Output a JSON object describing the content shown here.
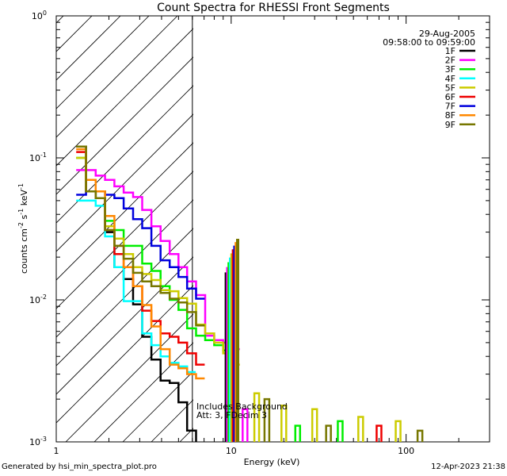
{
  "chart_data": {
    "type": "line",
    "title": "Count Spectra for RHESSI Front Segments",
    "xlabel": "Energy (keV)",
    "ylabel_parts": [
      "counts cm",
      "-2",
      " s",
      "-1",
      " keV",
      "-1"
    ],
    "xscale": "log",
    "yscale": "log",
    "xlim": [
      1,
      300
    ],
    "ylim": [
      0.001,
      1
    ],
    "x_ticks": [
      {
        "value": 1,
        "label": "1"
      },
      {
        "value": 10,
        "label": "10"
      },
      {
        "value": 100,
        "label": "100"
      }
    ],
    "y_ticks": [
      {
        "value": 0.001,
        "base": "10",
        "exp": "-3"
      },
      {
        "value": 0.01,
        "base": "10",
        "exp": "-2"
      },
      {
        "value": 0.1,
        "base": "10",
        "exp": "-1"
      },
      {
        "value": 1,
        "base": "10",
        "exp": "0"
      }
    ],
    "date": "29-Aug-2005",
    "time_range": "09:58:00 to 09:59:00",
    "background_region": {
      "x_max": 6
    },
    "annotation_line1": "Includes Background",
    "annotation_line2": "Att: 3, FDecim 3",
    "series": [
      {
        "name": "1F",
        "color": "#000000",
        "x": [
          1.3,
          1.48,
          1.68,
          1.9,
          2.15,
          2.43,
          2.75,
          3.1,
          3.5,
          3.95,
          4.45,
          5.0,
          5.6,
          6.3
        ],
        "y": [
          0.12,
          0.058,
          0.052,
          0.03,
          0.017,
          0.014,
          0.0093,
          0.0055,
          0.0038,
          0.0027,
          0.0026,
          0.0019,
          0.0012,
          0.0009
        ]
      },
      {
        "name": "2F",
        "color": "#ff00ff",
        "x": [
          1.3,
          1.48,
          1.68,
          1.9,
          2.15,
          2.43,
          2.75,
          3.1,
          3.5,
          3.95,
          4.45,
          5.0,
          5.6,
          6.3,
          7.1,
          8.0,
          9.0,
          10.0
        ],
        "y": [
          0.082,
          0.082,
          0.075,
          0.07,
          0.063,
          0.057,
          0.053,
          0.043,
          0.033,
          0.026,
          0.021,
          0.017,
          0.0135,
          0.0108,
          0.0056,
          0.0052,
          0.005,
          0.0045
        ]
      },
      {
        "name": "3F",
        "color": "#00ee00",
        "x": [
          1.3,
          1.48,
          1.68,
          1.9,
          2.15,
          2.43,
          2.75,
          3.1,
          3.5,
          3.95,
          4.45,
          5.0,
          5.6,
          6.3,
          7.1,
          8.0,
          9.0
        ],
        "y": [
          0.1,
          0.058,
          0.052,
          0.036,
          0.031,
          0.024,
          0.024,
          0.018,
          0.016,
          0.0125,
          0.01,
          0.0085,
          0.0063,
          0.0056,
          0.0052,
          0.0048,
          0.0044
        ]
      },
      {
        "name": "4F",
        "color": "#00ffff",
        "x": [
          1.3,
          1.48,
          1.68,
          1.9,
          2.15,
          2.43,
          2.75,
          3.1,
          3.5,
          3.95,
          4.45,
          5.0,
          5.6
        ],
        "y": [
          0.05,
          0.05,
          0.046,
          0.028,
          0.017,
          0.0098,
          0.0098,
          0.0058,
          0.0048,
          0.004,
          0.0036,
          0.0034,
          0.0031
        ]
      },
      {
        "name": "5F",
        "color": "#cccc00",
        "x": [
          1.3,
          1.48,
          1.68,
          1.9,
          2.15,
          2.43,
          2.75,
          3.1,
          3.5,
          3.95,
          4.45,
          5.0,
          5.6,
          6.3,
          7.1,
          8.0,
          9.0,
          10.0
        ],
        "y": [
          0.1,
          0.058,
          0.052,
          0.033,
          0.027,
          0.021,
          0.017,
          0.0152,
          0.0138,
          0.0117,
          0.0115,
          0.0103,
          0.0094,
          0.0067,
          0.0058,
          0.005,
          0.0042,
          0.0035
        ]
      },
      {
        "name": "6F",
        "color": "#ee0000",
        "x": [
          1.3,
          1.48,
          1.68,
          1.9,
          2.15,
          2.43,
          2.75,
          3.1,
          3.5,
          3.95,
          4.45,
          5.0,
          5.6,
          6.3
        ],
        "y": [
          0.11,
          0.058,
          0.052,
          0.031,
          0.021,
          0.017,
          0.0125,
          0.0084,
          0.0071,
          0.0058,
          0.0055,
          0.005,
          0.0042,
          0.0035
        ]
      },
      {
        "name": "7F",
        "color": "#0000dd",
        "x": [
          1.3,
          1.48,
          1.68,
          1.9,
          2.15,
          2.43,
          2.75,
          3.1,
          3.5,
          3.95,
          4.45,
          5.0,
          5.6,
          6.3
        ],
        "y": [
          0.055,
          0.058,
          0.058,
          0.055,
          0.052,
          0.044,
          0.037,
          0.032,
          0.024,
          0.019,
          0.017,
          0.0145,
          0.012,
          0.0102
        ]
      },
      {
        "name": "8F",
        "color": "#ff8800",
        "x": [
          1.3,
          1.48,
          1.68,
          1.9,
          2.15,
          2.43,
          2.75,
          3.1,
          3.5,
          3.95,
          4.45,
          5.0,
          5.6,
          6.3
        ],
        "y": [
          0.115,
          0.07,
          0.058,
          0.039,
          0.024,
          0.017,
          0.0125,
          0.0092,
          0.0065,
          0.0045,
          0.0035,
          0.0033,
          0.003,
          0.0028
        ]
      },
      {
        "name": "9F",
        "color": "#777700",
        "x": [
          1.3,
          1.48,
          1.68,
          1.9,
          2.15,
          2.43,
          2.75,
          3.1,
          3.5,
          3.95,
          4.45,
          5.0,
          5.6,
          6.3
        ],
        "y": [
          0.12,
          0.058,
          0.052,
          0.031,
          0.024,
          0.0195,
          0.0155,
          0.0135,
          0.0125,
          0.0112,
          0.0102,
          0.0096,
          0.0082,
          0.0066
        ]
      }
    ],
    "line_peak": {
      "x": 10.0,
      "value": 0.028
    },
    "high_energy_points": [
      {
        "series": "2F",
        "x": 12.0,
        "y": 0.0017
      },
      {
        "series": "5F",
        "x": 14.0,
        "y": 0.0022
      },
      {
        "series": "9F",
        "x": 16.0,
        "y": 0.002
      },
      {
        "series": "5F",
        "x": 20.0,
        "y": 0.0018
      },
      {
        "series": "3F",
        "x": 24.0,
        "y": 0.0013
      },
      {
        "series": "5F",
        "x": 30.0,
        "y": 0.0017
      },
      {
        "series": "9F",
        "x": 36.0,
        "y": 0.0013
      },
      {
        "series": "3F",
        "x": 42.0,
        "y": 0.0014
      },
      {
        "series": "5F",
        "x": 55.0,
        "y": 0.0015
      },
      {
        "series": "6F",
        "x": 70.0,
        "y": 0.0013
      },
      {
        "series": "5F",
        "x": 90.0,
        "y": 0.0014
      },
      {
        "series": "9F",
        "x": 120.0,
        "y": 0.0012
      }
    ]
  },
  "footer": {
    "left": "Generated by hsi_min_spectra_plot.pro",
    "right": "12-Apr-2023 21:38"
  }
}
